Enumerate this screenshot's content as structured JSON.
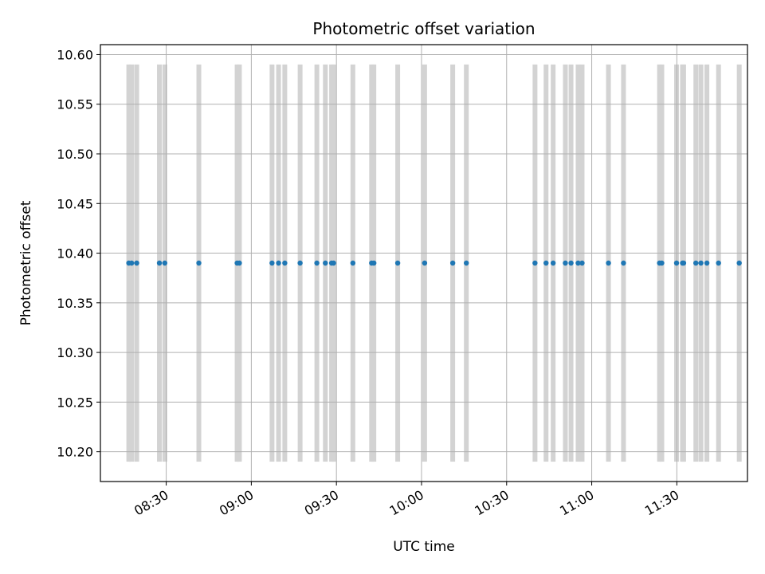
{
  "chart_data": {
    "type": "scatter",
    "title": "Photometric offset variation",
    "xlabel": "UTC time",
    "ylabel": "Photometric offset",
    "x_ticks": [
      "08:30",
      "09:00",
      "09:30",
      "10:00",
      "10:30",
      "11:00",
      "11:30"
    ],
    "x_tick_minutes": [
      510,
      540,
      570,
      600,
      630,
      660,
      690
    ],
    "xlim_minutes": [
      486.8,
      714.9
    ],
    "y_ticks": [
      "10.20",
      "10.25",
      "10.30",
      "10.35",
      "10.40",
      "10.45",
      "10.50",
      "10.55",
      "10.60"
    ],
    "y_tick_values": [
      10.2,
      10.25,
      10.3,
      10.35,
      10.4,
      10.45,
      10.5,
      10.55,
      10.6
    ],
    "ylim": [
      10.17,
      10.61
    ],
    "grid": true,
    "band_range": [
      10.19,
      10.59
    ],
    "point_value": 10.39,
    "observation_minutes": [
      496.8,
      497.8,
      499.6,
      507.6,
      509.5,
      521.5,
      535.0,
      535.8,
      547.3,
      549.6,
      551.8,
      557.2,
      563.1,
      566.1,
      568.3,
      569.0,
      575.8,
      582.4,
      583.2,
      591.6,
      601.1,
      611.0,
      615.8,
      640.0,
      643.9,
      646.4,
      650.7,
      652.7,
      655.2,
      656.6,
      684.7,
      683.9,
      689.9,
      692.0,
      696.7,
      698.5,
      692.4,
      665.9,
      671.2,
      700.6,
      704.7,
      712.0
    ],
    "colors": {
      "points": "#1f77b4",
      "bands": "#d3d3d3",
      "grid": "#b0b0b0",
      "axes": "#000000"
    }
  }
}
